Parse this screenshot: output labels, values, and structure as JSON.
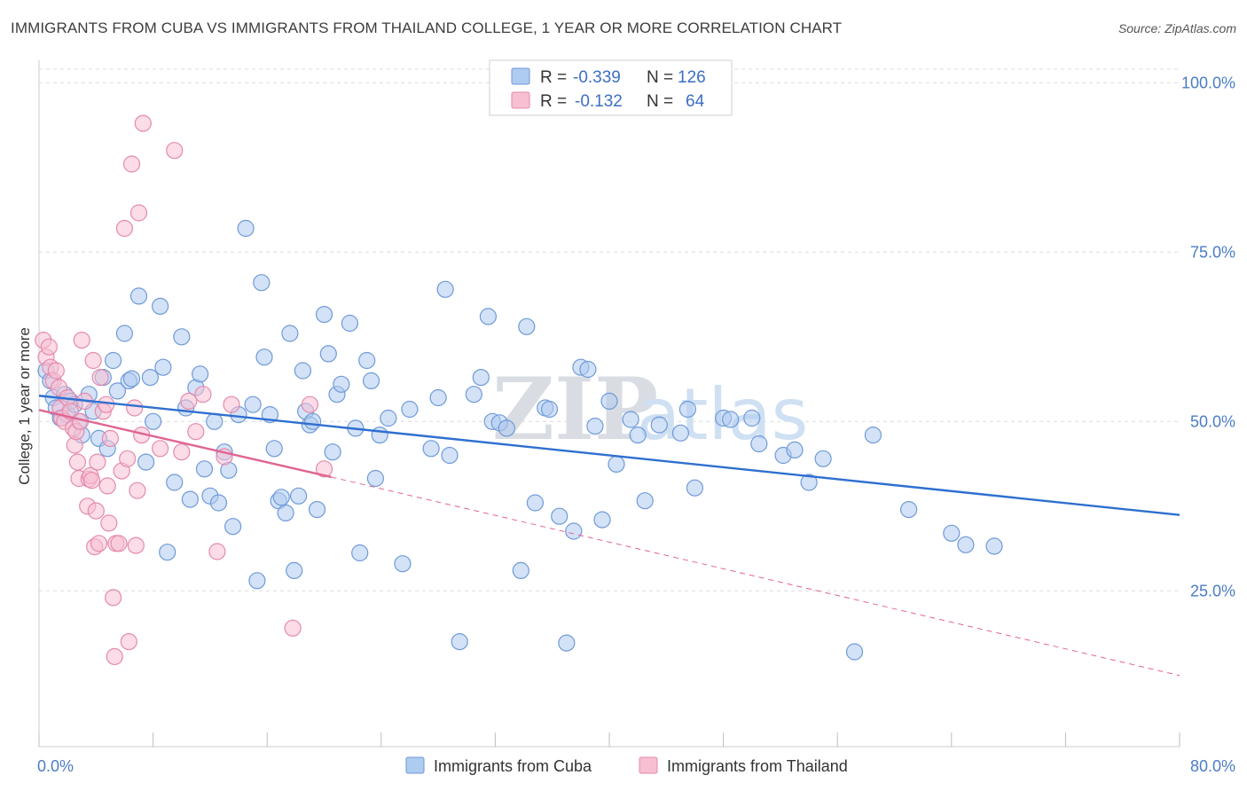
{
  "title": "IMMIGRANTS FROM CUBA VS IMMIGRANTS FROM THAILAND COLLEGE, 1 YEAR OR MORE CORRELATION CHART",
  "source": "Source: ZipAtlas.com",
  "watermark": {
    "zip": "ZIP",
    "atlas": "atlas"
  },
  "legend_top": [
    {
      "r_label": "R =",
      "r_value": "-0.339",
      "n_label": "N =",
      "n_value": "126",
      "color": "#aecbf0",
      "stroke": "#6f9ad8"
    },
    {
      "r_label": "R =",
      "r_value": "-0.132",
      "n_label": "N =",
      "n_value": "64",
      "color": "#f8bfd3",
      "stroke": "#e58aab"
    }
  ],
  "chart_data": {
    "type": "scatter",
    "title": "IMMIGRANTS FROM CUBA VS IMMIGRANTS FROM THAILAND COLLEGE, 1 YEAR OR MORE CORRELATION CHART",
    "xlabel": "",
    "ylabel": "College, 1 year or more",
    "xlim": [
      0,
      80
    ],
    "ylim": [
      2,
      102
    ],
    "x_tick_labels": [
      "0.0%",
      "80.0%"
    ],
    "y_ticks": [
      25,
      50,
      75,
      100
    ],
    "y_tick_labels": [
      "25.0%",
      "50.0%",
      "75.0%",
      "100.0%"
    ],
    "grid": true,
    "legend_position": "top-center",
    "series": [
      {
        "name": "Immigrants from Cuba",
        "color": "#aecbf0",
        "stroke": "#6f9ad8",
        "line_color": "#2f6fd0",
        "trend": {
          "x": [
            0,
            80
          ],
          "y": [
            53.8,
            36.2
          ],
          "dashed_from": null
        },
        "points": [
          [
            0.5,
            57.5
          ],
          [
            0.8,
            56
          ],
          [
            1,
            53.5
          ],
          [
            1.2,
            52
          ],
          [
            1.5,
            50.5
          ],
          [
            1.8,
            54
          ],
          [
            2,
            51
          ],
          [
            2.2,
            53
          ],
          [
            2.5,
            52.5
          ],
          [
            2.8,
            50
          ],
          [
            3,
            48
          ],
          [
            3.5,
            54
          ],
          [
            3.8,
            51.5
          ],
          [
            4.2,
            47.5
          ],
          [
            4.5,
            56.5
          ],
          [
            4.8,
            46
          ],
          [
            5.2,
            59
          ],
          [
            5.5,
            54.5
          ],
          [
            6,
            63
          ],
          [
            6.3,
            56
          ],
          [
            6.5,
            56.3
          ],
          [
            7,
            68.5
          ],
          [
            7.5,
            44
          ],
          [
            7.8,
            56.5
          ],
          [
            8,
            50
          ],
          [
            8.5,
            67
          ],
          [
            8.7,
            58
          ],
          [
            9,
            30.7
          ],
          [
            9.5,
            41
          ],
          [
            10,
            62.5
          ],
          [
            10.3,
            52
          ],
          [
            10.6,
            38.5
          ],
          [
            11,
            55
          ],
          [
            11.3,
            57
          ],
          [
            11.6,
            43
          ],
          [
            12,
            39
          ],
          [
            12.3,
            50
          ],
          [
            12.6,
            38
          ],
          [
            13,
            45.5
          ],
          [
            13.3,
            42.8
          ],
          [
            13.6,
            34.5
          ],
          [
            14,
            51
          ],
          [
            14.5,
            78.5
          ],
          [
            15,
            52.5
          ],
          [
            15.3,
            26.5
          ],
          [
            15.6,
            70.5
          ],
          [
            15.8,
            59.5
          ],
          [
            16.2,
            51
          ],
          [
            16.5,
            46
          ],
          [
            16.8,
            38.3
          ],
          [
            17,
            38.8
          ],
          [
            17.3,
            36.5
          ],
          [
            17.6,
            63
          ],
          [
            17.9,
            28
          ],
          [
            18.2,
            39
          ],
          [
            18.5,
            57.5
          ],
          [
            18.7,
            51.5
          ],
          [
            19,
            49.5
          ],
          [
            19.2,
            50
          ],
          [
            19.5,
            37
          ],
          [
            20,
            65.8
          ],
          [
            20.3,
            60
          ],
          [
            20.6,
            45.5
          ],
          [
            20.9,
            54
          ],
          [
            21.2,
            55.5
          ],
          [
            21.8,
            64.5
          ],
          [
            22.2,
            49
          ],
          [
            22.5,
            30.6
          ],
          [
            23,
            59
          ],
          [
            23.3,
            56
          ],
          [
            23.6,
            41.6
          ],
          [
            23.9,
            48
          ],
          [
            24.5,
            50.5
          ],
          [
            25.5,
            29
          ],
          [
            26,
            51.8
          ],
          [
            27.5,
            46
          ],
          [
            28,
            53.5
          ],
          [
            28.5,
            69.5
          ],
          [
            28.8,
            45
          ],
          [
            29.5,
            17.5
          ],
          [
            30.5,
            54
          ],
          [
            31,
            56.5
          ],
          [
            31.5,
            65.5
          ],
          [
            31.8,
            50
          ],
          [
            32.3,
            49.8
          ],
          [
            32.8,
            49
          ],
          [
            33.8,
            28
          ],
          [
            34.2,
            64
          ],
          [
            34.8,
            38
          ],
          [
            35.5,
            52
          ],
          [
            35.8,
            51.8
          ],
          [
            36.5,
            36
          ],
          [
            37,
            17.3
          ],
          [
            37.5,
            33.8
          ],
          [
            38,
            58
          ],
          [
            38.5,
            57.7
          ],
          [
            39,
            49.3
          ],
          [
            39.5,
            35.5
          ],
          [
            40,
            53
          ],
          [
            40.5,
            43.7
          ],
          [
            41.5,
            50.3
          ],
          [
            42,
            48
          ],
          [
            42.5,
            38.3
          ],
          [
            43.5,
            49.5
          ],
          [
            45,
            48.3
          ],
          [
            45.5,
            51.8
          ],
          [
            46,
            40.2
          ],
          [
            48,
            50.5
          ],
          [
            48.5,
            50.3
          ],
          [
            50,
            50.5
          ],
          [
            50.5,
            46.7
          ],
          [
            52.2,
            45
          ],
          [
            53,
            45.8
          ],
          [
            54,
            41
          ],
          [
            55,
            44.5
          ],
          [
            57.2,
            16
          ],
          [
            58.5,
            48
          ],
          [
            61,
            37
          ],
          [
            64,
            33.5
          ],
          [
            65,
            31.8
          ],
          [
            67,
            31.6
          ]
        ]
      },
      {
        "name": "Immigrants from Thailand",
        "color": "#f8bfd3",
        "stroke": "#e58aab",
        "line_color": "#e06592",
        "trend": {
          "x": [
            0,
            20.5,
            80
          ],
          "y": [
            51.7,
            41.8,
            12.5
          ],
          "dashed_from": 20.5
        },
        "points": [
          [
            0.3,
            62
          ],
          [
            0.5,
            59.5
          ],
          [
            0.7,
            61
          ],
          [
            0.8,
            58
          ],
          [
            1,
            56
          ],
          [
            1.2,
            57.5
          ],
          [
            1.4,
            55
          ],
          [
            1.5,
            52
          ],
          [
            1.6,
            50.5
          ],
          [
            1.8,
            50
          ],
          [
            2,
            53.5
          ],
          [
            2.2,
            51.5
          ],
          [
            2.4,
            49
          ],
          [
            2.5,
            46.5
          ],
          [
            2.6,
            48.5
          ],
          [
            2.7,
            44
          ],
          [
            2.8,
            41.6
          ],
          [
            2.9,
            50
          ],
          [
            3,
            62
          ],
          [
            3.2,
            53
          ],
          [
            3.4,
            37.5
          ],
          [
            3.5,
            41.5
          ],
          [
            3.6,
            42
          ],
          [
            3.7,
            41.3
          ],
          [
            3.8,
            59
          ],
          [
            3.9,
            31.5
          ],
          [
            4,
            36.8
          ],
          [
            4.1,
            44
          ],
          [
            4.2,
            32
          ],
          [
            4.3,
            56.5
          ],
          [
            4.5,
            51.5
          ],
          [
            4.7,
            52.5
          ],
          [
            4.8,
            40.5
          ],
          [
            4.9,
            35
          ],
          [
            5,
            47.5
          ],
          [
            5.2,
            24
          ],
          [
            5.3,
            15.3
          ],
          [
            5.4,
            32
          ],
          [
            5.6,
            32
          ],
          [
            5.8,
            42.7
          ],
          [
            6,
            78.5
          ],
          [
            6.2,
            44.5
          ],
          [
            6.3,
            17.5
          ],
          [
            6.5,
            88
          ],
          [
            6.7,
            52
          ],
          [
            6.8,
            31.7
          ],
          [
            6.9,
            39.8
          ],
          [
            7,
            80.8
          ],
          [
            7.2,
            48
          ],
          [
            7.3,
            94
          ],
          [
            8.5,
            46
          ],
          [
            9.5,
            90
          ],
          [
            10,
            45.5
          ],
          [
            10.5,
            53
          ],
          [
            11,
            48.5
          ],
          [
            11.5,
            54
          ],
          [
            12.5,
            30.8
          ],
          [
            13,
            44.8
          ],
          [
            13.5,
            52.5
          ],
          [
            17.8,
            19.5
          ],
          [
            19,
            52.5
          ],
          [
            20,
            43
          ]
        ]
      }
    ]
  },
  "bottom_legend": [
    {
      "label": "Immigrants from Cuba",
      "color": "#aecbf0",
      "stroke": "#6f9ad8"
    },
    {
      "label": "Immigrants from Thailand",
      "color": "#f8bfd3",
      "stroke": "#e58aab"
    }
  ]
}
